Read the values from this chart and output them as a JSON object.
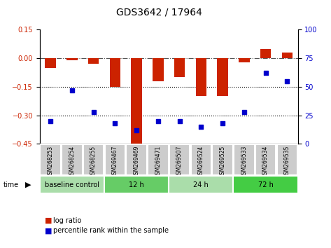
{
  "title": "GDS3642 / 17964",
  "samples": [
    "GSM268253",
    "GSM268254",
    "GSM268255",
    "GSM269467",
    "GSM269469",
    "GSM269471",
    "GSM269507",
    "GSM269524",
    "GSM269525",
    "GSM269533",
    "GSM269534",
    "GSM269535"
  ],
  "log_ratio": [
    -0.05,
    -0.01,
    -0.03,
    -0.15,
    -0.47,
    -0.12,
    -0.1,
    -0.2,
    -0.2,
    -0.02,
    0.05,
    0.03
  ],
  "percentile_rank": [
    20,
    47,
    28,
    18,
    12,
    20,
    20,
    15,
    18,
    28,
    62,
    55
  ],
  "ylim_left": [
    -0.45,
    0.15
  ],
  "ylim_right": [
    0,
    100
  ],
  "yticks_left": [
    0.15,
    0,
    -0.15,
    -0.3,
    -0.45
  ],
  "yticks_right": [
    100,
    75,
    50,
    25,
    0
  ],
  "hlines": [
    0,
    -0.15,
    -0.3
  ],
  "bar_color": "#cc2200",
  "scatter_color": "#0000cc",
  "bar_width": 0.5,
  "groups": [
    {
      "label": "baseline control",
      "start": 0,
      "end": 3,
      "color": "#99dd99"
    },
    {
      "label": "12 h",
      "start": 3,
      "end": 6,
      "color": "#66cc66"
    },
    {
      "label": "24 h",
      "start": 6,
      "end": 9,
      "color": "#99dd99"
    },
    {
      "label": "72 h",
      "start": 9,
      "end": 12,
      "color": "#55cc55"
    }
  ],
  "time_label": "time",
  "legend_bar_label": "log ratio",
  "legend_scatter_label": "percentile rank within the sample",
  "background_color": "#ffffff",
  "plot_bg": "#ffffff",
  "tick_label_color_left": "#cc2200",
  "tick_label_color_right": "#0000cc"
}
